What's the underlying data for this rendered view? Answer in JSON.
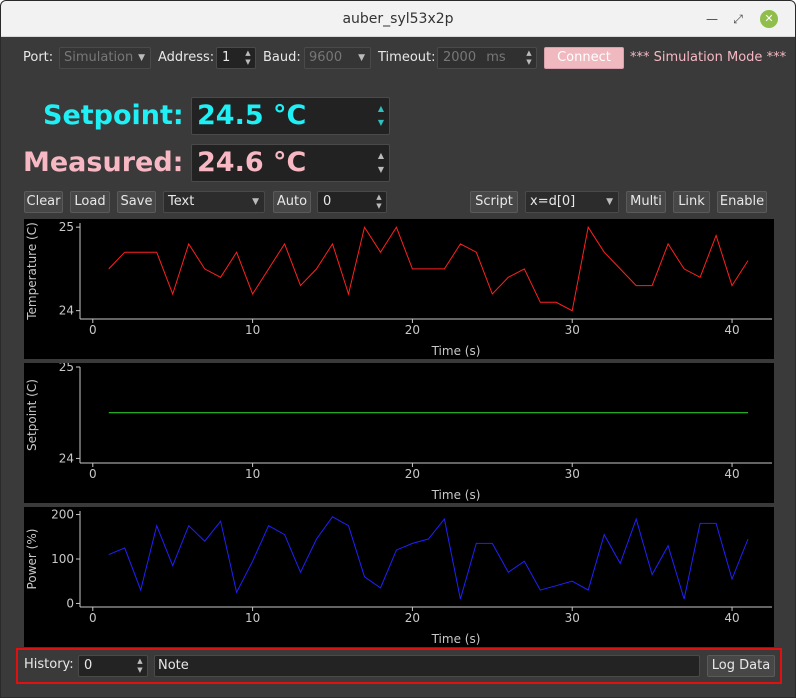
{
  "window": {
    "title": "auber_syl53x2p"
  },
  "toolbar": {
    "port_label": "Port:",
    "port_value": "Simulation",
    "address_label": "Address:",
    "address_value": "1",
    "baud_label": "Baud:",
    "baud_value": "9600",
    "timeout_label": "Timeout:",
    "timeout_value": "2000",
    "timeout_unit": "ms",
    "connect_label": "Connect",
    "mode_text": "*** Simulation Mode ***"
  },
  "readouts": {
    "setpoint_label": "Setpoint:",
    "setpoint_value": "24.5 °C",
    "measured_label": "Measured:",
    "measured_value": "24.6 °C"
  },
  "plot_controls": {
    "clear": "Clear",
    "load": "Load",
    "save": "Save",
    "format_value": "Text",
    "auto": "Auto",
    "auto_value": "0",
    "script": "Script",
    "expr_value": "x=d[0]",
    "multi": "Multi",
    "link": "Link",
    "enable": "Enable"
  },
  "colors": {
    "temperature": "#ff2020",
    "setpoint": "#30e030",
    "power": "#2020ff",
    "setpoint_text": "#1ef0f5",
    "measured_text": "#f7b8c4",
    "highlight": "#e01010"
  },
  "chart_data": [
    {
      "type": "line",
      "ylabel": "Temperature (C)",
      "xlabel": "Time (s)",
      "xlim": [
        -0.8,
        42.5
      ],
      "ylim": [
        23.9,
        25.05
      ],
      "xticks": [
        0,
        10,
        20,
        30,
        40
      ],
      "yticks": [
        24,
        25
      ],
      "series": [
        {
          "color": "#ff2020",
          "x": [
            1,
            2,
            3,
            4,
            5,
            6,
            7,
            8,
            9,
            10,
            11,
            12,
            13,
            14,
            15,
            16,
            17,
            18,
            19,
            20,
            21,
            22,
            23,
            24,
            25,
            26,
            27,
            28,
            29,
            30,
            31,
            32,
            33,
            34,
            35,
            36,
            37,
            38,
            39,
            40,
            41
          ],
          "y": [
            24.5,
            24.7,
            24.7,
            24.7,
            24.2,
            24.8,
            24.5,
            24.4,
            24.7,
            24.2,
            24.5,
            24.8,
            24.3,
            24.5,
            24.8,
            24.2,
            25.0,
            24.7,
            25.0,
            24.5,
            24.5,
            24.5,
            24.8,
            24.7,
            24.2,
            24.4,
            24.5,
            24.1,
            24.1,
            24.0,
            25.0,
            24.7,
            24.5,
            24.3,
            24.3,
            24.8,
            24.5,
            24.4,
            24.9,
            24.3,
            24.6
          ]
        }
      ]
    },
    {
      "type": "line",
      "ylabel": "Setpoint (C)",
      "xlabel": "Time (s)",
      "xlim": [
        -0.8,
        42.5
      ],
      "ylim": [
        23.95,
        25.0
      ],
      "xticks": [
        0,
        10,
        20,
        30,
        40
      ],
      "yticks": [
        24,
        25
      ],
      "series": [
        {
          "color": "#30e030",
          "x": [
            1,
            41
          ],
          "y": [
            24.5,
            24.5
          ]
        }
      ]
    },
    {
      "type": "line",
      "ylabel": "Power (%)",
      "xlabel": "Time (s)",
      "xlim": [
        -0.8,
        42.5
      ],
      "ylim": [
        -8,
        208
      ],
      "xticks": [
        0,
        10,
        20,
        30,
        40
      ],
      "yticks": [
        0,
        100,
        200
      ],
      "series": [
        {
          "color": "#2020ff",
          "x": [
            1,
            2,
            3,
            4,
            5,
            6,
            7,
            8,
            9,
            10,
            11,
            12,
            13,
            14,
            15,
            16,
            17,
            18,
            19,
            20,
            21,
            22,
            23,
            24,
            25,
            26,
            27,
            28,
            29,
            30,
            31,
            32,
            33,
            34,
            35,
            36,
            37,
            38,
            39,
            40,
            41
          ],
          "y": [
            110,
            125,
            30,
            175,
            85,
            175,
            140,
            185,
            25,
            95,
            175,
            155,
            70,
            145,
            195,
            175,
            60,
            35,
            120,
            135,
            145,
            190,
            10,
            135,
            135,
            70,
            95,
            30,
            40,
            50,
            30,
            155,
            90,
            190,
            65,
            130,
            10,
            180,
            180,
            55,
            145
          ]
        }
      ]
    }
  ],
  "footer": {
    "history_label": "History:",
    "history_value": "0",
    "note_value": "Note",
    "log_data": "Log Data"
  }
}
